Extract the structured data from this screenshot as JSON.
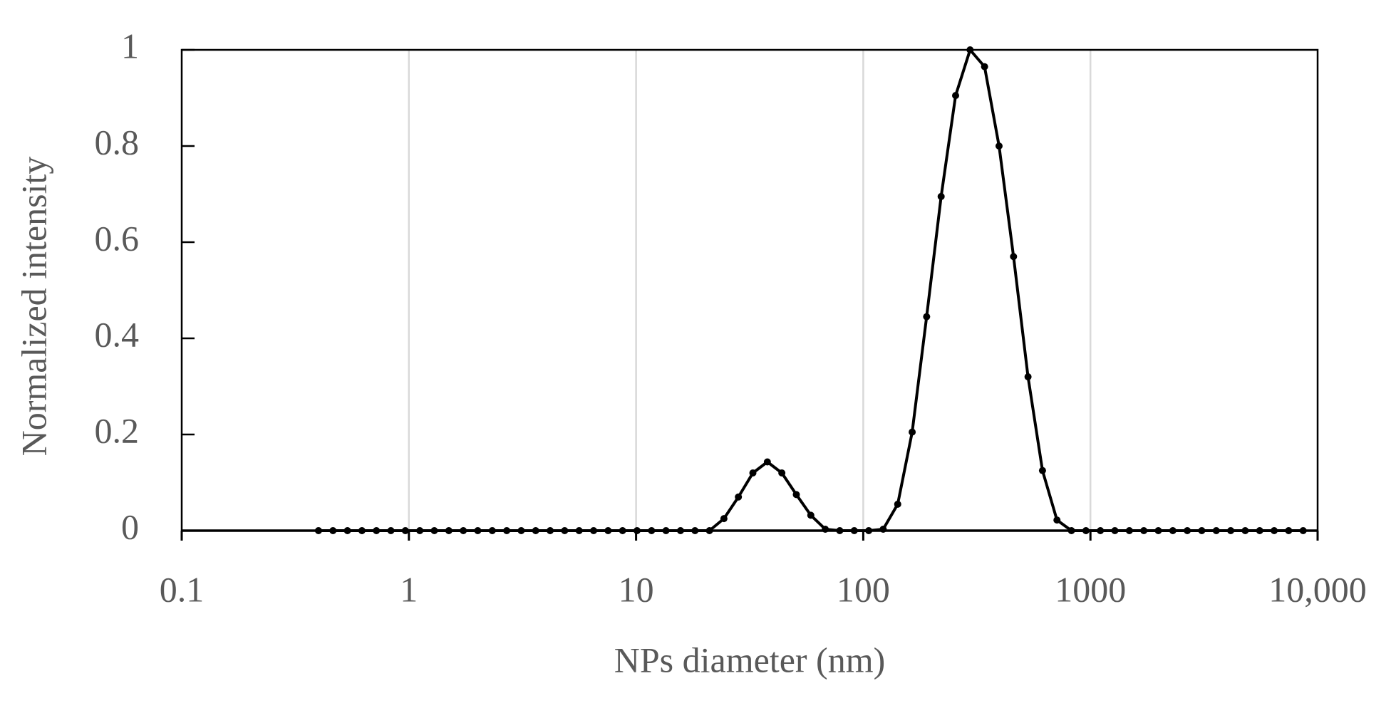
{
  "chart_data": {
    "type": "line",
    "x_label": "NPs diameter (nm)",
    "y_label": "Normalized intensity",
    "x_log": true,
    "grid": true,
    "color": "#000000",
    "xlim": [
      0.1,
      10000
    ],
    "xticks": [
      0.1,
      1,
      10,
      100,
      1000,
      {
        "value": 10000,
        "label": "10,000"
      }
    ],
    "ylim": [
      0,
      1
    ],
    "yticks": [
      0,
      0.2,
      0.4,
      0.6,
      0.8,
      1
    ],
    "x": [
      0.4,
      0.4632,
      0.5365,
      0.6213,
      0.7195,
      0.8332,
      0.9649,
      1.117,
      1.294,
      1.499,
      1.736,
      2.01,
      2.328,
      2.696,
      3.122,
      3.615,
      4.187,
      4.849,
      5.615,
      6.503,
      7.531,
      8.721,
      10.1,
      11.7,
      13.54,
      15.69,
      18.17,
      21.04,
      24.36,
      28.21,
      32.67,
      37.84,
      43.82,
      50.75,
      58.77,
      68.06,
      78.82,
      91.28,
      105.7,
      122.4,
      141.8,
      164.2,
      190.1,
      220.2,
      255,
      295.3,
      342,
      396.1,
      458.7,
      531.2,
      615.1,
      712.4,
      825,
      955.4,
      1106,
      1281,
      1484,
      1718,
      1990,
      2305,
      2669,
      3091,
      3580,
      4145,
      4801,
      5560,
      6439,
      7456,
      8635
    ],
    "values": [
      0,
      0,
      0,
      0,
      0,
      0,
      0,
      0,
      0,
      0,
      0,
      0,
      0,
      0,
      0,
      0,
      0,
      0,
      0,
      0,
      0,
      0,
      0,
      0,
      0,
      0,
      0,
      0,
      0.025,
      0.07,
      0.12,
      0.143,
      0.12,
      0.075,
      0.032,
      0.003,
      0,
      0,
      0,
      0.003,
      0.055,
      0.205,
      0.445,
      0.695,
      0.905,
      1,
      0.965,
      0.8,
      0.57,
      0.32,
      0.125,
      0.022,
      0,
      0,
      0,
      0,
      0,
      0,
      0,
      0,
      0,
      0,
      0,
      0,
      0,
      0,
      0,
      0,
      0
    ]
  }
}
